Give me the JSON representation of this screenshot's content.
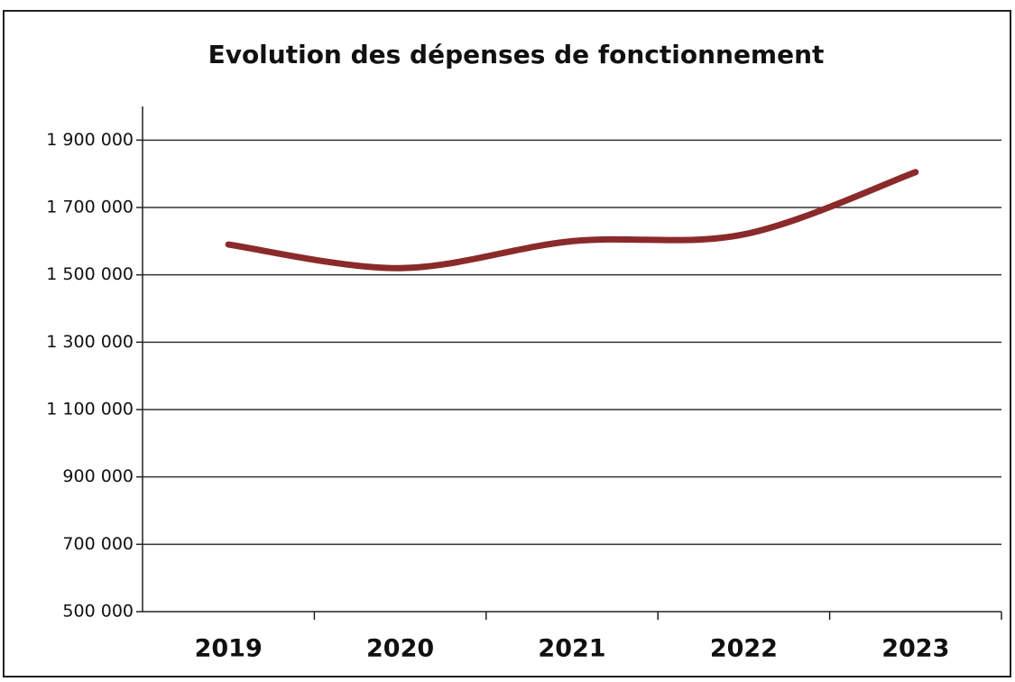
{
  "chart_data": {
    "type": "line",
    "title": "Evolution des dépenses de fonctionnement",
    "categories": [
      "2019",
      "2020",
      "2021",
      "2022",
      "2023"
    ],
    "series": [
      {
        "name": "Dépenses de fonctionnement",
        "color": "#8b2a2a",
        "values": [
          1590000,
          1520000,
          1600000,
          1620000,
          1805000
        ]
      }
    ],
    "ylim": [
      500000,
      2000000
    ],
    "yticks": [
      {
        "value": 500000,
        "label": "500 000"
      },
      {
        "value": 700000,
        "label": "700 000"
      },
      {
        "value": 900000,
        "label": "900 000"
      },
      {
        "value": 1100000,
        "label": "1 100 000"
      },
      {
        "value": 1300000,
        "label": "1 300 000"
      },
      {
        "value": 1500000,
        "label": "1 500 000"
      },
      {
        "value": 1700000,
        "label": "1 700 000"
      },
      {
        "value": 1900000,
        "label": "1 900 000"
      }
    ],
    "grid": true,
    "smooth": true
  }
}
